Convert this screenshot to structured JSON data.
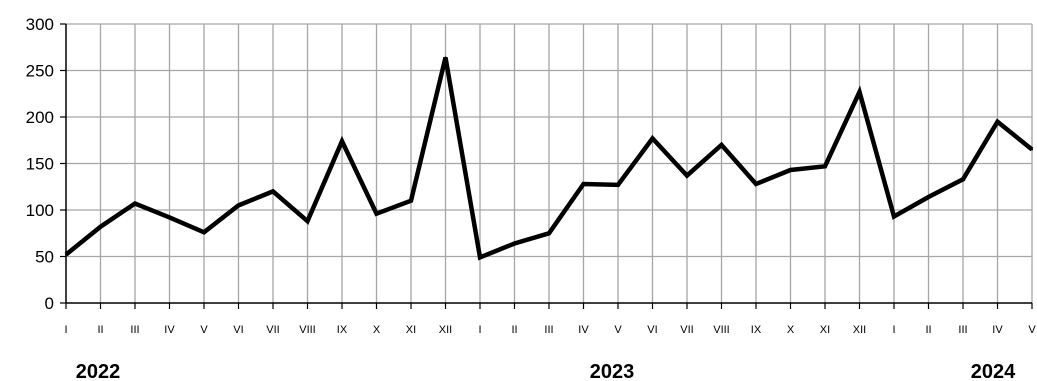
{
  "chart_data": {
    "type": "line",
    "title": "",
    "xlabel": "",
    "ylabel": "",
    "ylim": [
      0,
      300
    ],
    "yticks": [
      "0",
      "50",
      "100",
      "150",
      "200",
      "250",
      "300"
    ],
    "grid": true,
    "categories": [
      "I",
      "II",
      "III",
      "IV",
      "V",
      "VI",
      "VII",
      "VIII",
      "IX",
      "X",
      "XI",
      "XII",
      "I",
      "II",
      "III",
      "IV",
      "V",
      "VI",
      "VII",
      "VIII",
      "IX",
      "X",
      "XI",
      "XII",
      "I",
      "II",
      "III",
      "IV",
      "V"
    ],
    "years": [
      {
        "label": "2022",
        "start_index": 0
      },
      {
        "label": "2023",
        "start_index": 12
      },
      {
        "label": "2024",
        "start_index": 24
      }
    ],
    "series": [
      {
        "values": [
          52,
          82,
          107,
          92,
          76,
          105,
          120,
          88,
          174,
          96,
          110,
          264,
          49,
          64,
          75,
          128,
          127,
          177,
          137,
          170,
          128,
          143,
          147,
          227,
          93,
          114,
          133,
          195,
          165
        ]
      }
    ],
    "colors": {
      "line": "#000000",
      "grid": "#a6a6a6",
      "axis": "#000000"
    }
  }
}
